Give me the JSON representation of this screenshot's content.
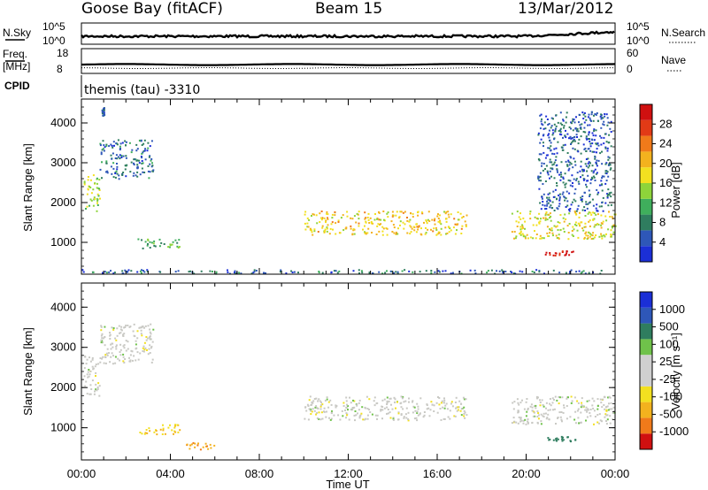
{
  "header": {
    "title": "Goose Bay (fitACF)",
    "beam": "Beam 15",
    "date": "13/Mar/2012"
  },
  "top_panel": {
    "left_label": "N.Sky",
    "right_label": "N.Search",
    "left_ticks": [
      "10^5",
      "10^0"
    ],
    "right_ticks": [
      "10^5",
      "10^0"
    ]
  },
  "freq_panel": {
    "left_label_1": "Freq.",
    "left_label_2": "[MHz]",
    "right_label": "Nave",
    "left_ticks": [
      "18",
      "8"
    ],
    "right_ticks": [
      "60",
      "0"
    ]
  },
  "cpid": {
    "label": "CPID",
    "value": "themis (tau) -3310"
  },
  "colors": {
    "power_scale": [
      "#1b2fd6",
      "#2e57b8",
      "#2f7d5f",
      "#3fae5c",
      "#8ed43a",
      "#f2e020",
      "#f3b21e",
      "#f07a1a",
      "#e23a16",
      "#d01010"
    ],
    "velocity_scale": [
      "#1b2fd6",
      "#2e57b8",
      "#2f7d5f",
      "#6fc24a",
      "#cfcfcf",
      "#cfcfcf",
      "#f2e020",
      "#f3b21e",
      "#f07a1a",
      "#d01010"
    ],
    "scatter_gray": "#c9c9c4"
  },
  "chart_data": [
    {
      "type": "heatmap",
      "name": "power",
      "ylabel": "Slant Range [km]",
      "yticks": [
        1000,
        2000,
        3000,
        4000
      ],
      "ylim": [
        200,
        4600
      ],
      "xticks": [
        "00:00",
        "04:00",
        "08:00",
        "12:00",
        "16:00",
        "20:00",
        "00:00"
      ],
      "xlim_hours": [
        0,
        24
      ],
      "colorbar": {
        "label": "Power [dB]",
        "ticks": [
          4,
          8,
          12,
          16,
          20,
          24,
          28
        ],
        "range": [
          0,
          30
        ]
      },
      "features": [
        {
          "t": [
            0.1,
            0.8
          ],
          "range": [
            1800,
            2800
          ],
          "power": 14
        },
        {
          "t": [
            0.8,
            3.2
          ],
          "range": [
            2600,
            3600
          ],
          "power": 6
        },
        {
          "t": [
            0.9,
            1.0
          ],
          "range": [
            4200,
            4400
          ],
          "power": 4
        },
        {
          "t": [
            2.5,
            4.5
          ],
          "range": [
            850,
            1100
          ],
          "power": 10
        },
        {
          "t": [
            0.0,
            24.0
          ],
          "range": [
            230,
            330
          ],
          "power": 6
        },
        {
          "t": [
            10.0,
            17.3
          ],
          "range": [
            1200,
            1800
          ],
          "power": 18
        },
        {
          "t": [
            19.3,
            24.0
          ],
          "range": [
            1100,
            1800
          ],
          "power": 16
        },
        {
          "t": [
            20.8,
            22.2
          ],
          "range": [
            680,
            800
          ],
          "power": 28
        },
        {
          "t": [
            20.5,
            23.8
          ],
          "range": [
            1800,
            4300
          ],
          "power": 5
        }
      ]
    },
    {
      "type": "heatmap",
      "name": "velocity",
      "ylabel": "Slant Range [km]",
      "yticks": [
        1000,
        2000,
        3000,
        4000
      ],
      "ylim": [
        200,
        4600
      ],
      "xticks": [
        "00:00",
        "04:00",
        "08:00",
        "12:00",
        "16:00",
        "20:00",
        "00:00"
      ],
      "xlim_hours": [
        0,
        24
      ],
      "xlabel": "Time UT",
      "colorbar": {
        "label": "Velocity [m s⁻¹]",
        "ticks": [
          "1000",
          "500",
          "100",
          "25",
          "-25",
          "-100",
          "-500",
          "-1000"
        ]
      },
      "features": [
        {
          "t": [
            0.1,
            0.8
          ],
          "range": [
            1800,
            2800
          ],
          "velocity": 0
        },
        {
          "t": [
            0.8,
            3.2
          ],
          "range": [
            2600,
            3600
          ],
          "velocity": 0
        },
        {
          "t": [
            2.5,
            4.5
          ],
          "range": [
            850,
            1100
          ],
          "velocity": -100
        },
        {
          "t": [
            4.7,
            6.0
          ],
          "range": [
            450,
            650
          ],
          "velocity": -500
        },
        {
          "t": [
            10.0,
            17.3
          ],
          "range": [
            1200,
            1800
          ],
          "velocity": 0
        },
        {
          "t": [
            19.3,
            24.0
          ],
          "range": [
            1100,
            1800
          ],
          "velocity": 0
        },
        {
          "t": [
            20.8,
            22.2
          ],
          "range": [
            680,
            800
          ],
          "velocity": 300
        }
      ]
    }
  ]
}
